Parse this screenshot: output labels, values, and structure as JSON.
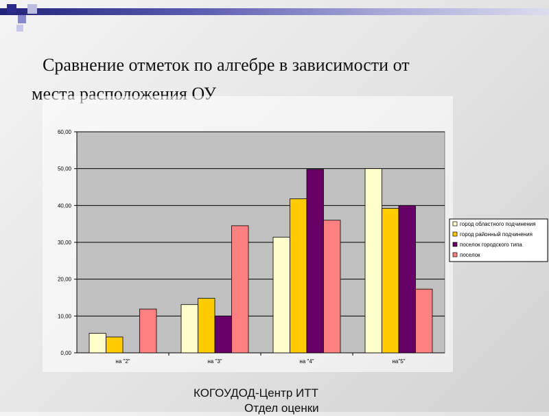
{
  "title": {
    "line1": "Сравнение отметок по алгебре в зависимости от",
    "line2": "места расположения ОУ"
  },
  "footer": {
    "line1": "КОГОУДОД-Центр ИТТ",
    "line2": "Отдел оценки"
  },
  "chart_data": {
    "type": "bar",
    "categories": [
      "на \"2\"",
      "на \"3\"",
      "на \"4\"",
      "на\"5\""
    ],
    "series": [
      {
        "name": "город областного подчинения",
        "values": [
          5.3,
          13.1,
          31.4,
          50.0
        ],
        "color": "#ffffcc"
      },
      {
        "name": "город районный подчинения",
        "values": [
          4.3,
          14.8,
          41.8,
          39.2
        ],
        "color": "#ffcc00"
      },
      {
        "name": "поселок городского типа",
        "values": [
          0,
          10.0,
          49.8,
          40.0
        ],
        "color": "#660066"
      },
      {
        "name": "поселок",
        "values": [
          11.9,
          34.5,
          36.0,
          17.3
        ],
        "color": "#ff8080"
      }
    ],
    "yticks": [
      "0,00",
      "10,00",
      "20,00",
      "30,00",
      "40,00",
      "50,00",
      "60,00"
    ],
    "ylim": [
      0,
      60
    ],
    "grid": true,
    "legend": "right",
    "plot_background": "#c0c0c0"
  }
}
